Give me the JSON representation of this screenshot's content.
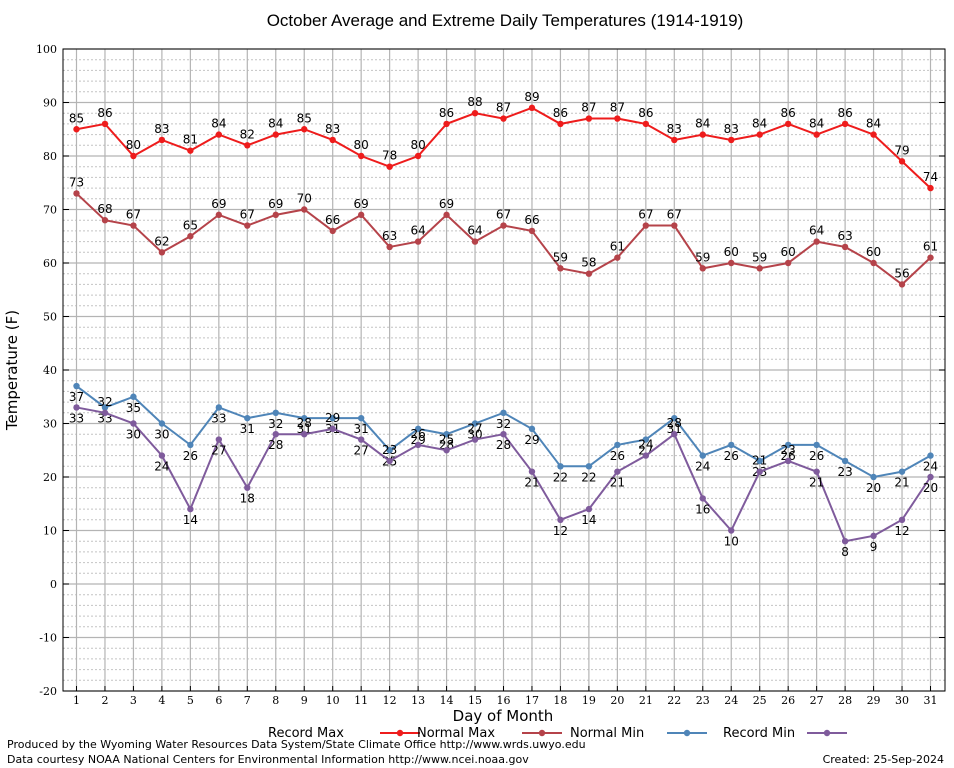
{
  "chart_data": {
    "type": "line",
    "title": "October Average and Extreme Daily Temperatures (1914-1919)",
    "xlabel": "Day of Month",
    "ylabel": "Temperature (F)",
    "ylim": [
      -20,
      100
    ],
    "yticks": [
      -20,
      -10,
      0,
      10,
      20,
      30,
      40,
      50,
      60,
      70,
      80,
      90,
      100
    ],
    "x": [
      1,
      2,
      3,
      4,
      5,
      6,
      7,
      8,
      9,
      10,
      11,
      12,
      13,
      14,
      15,
      16,
      17,
      18,
      19,
      20,
      21,
      22,
      23,
      24,
      25,
      26,
      27,
      28,
      29,
      30,
      31
    ],
    "grid": true,
    "legend_placement": "bottom",
    "series": [
      {
        "name": "Record Max",
        "color": "#ee1c1c",
        "values": [
          85,
          86,
          80,
          83,
          81,
          84,
          82,
          84,
          85,
          83,
          80,
          78,
          80,
          86,
          88,
          87,
          89,
          86,
          87,
          87,
          86,
          83,
          84,
          83,
          84,
          86,
          84,
          86,
          84,
          79,
          74
        ]
      },
      {
        "name": "Normal Max",
        "color": "#b5434a",
        "values": [
          73,
          68,
          67,
          62,
          65,
          69,
          67,
          69,
          70,
          66,
          69,
          63,
          64,
          69,
          64,
          67,
          66,
          59,
          58,
          61,
          67,
          67,
          59,
          60,
          59,
          60,
          64,
          63,
          60,
          56,
          61
        ]
      },
      {
        "name": "Normal Min",
        "color": "#4f85b8",
        "values": [
          37,
          33,
          35,
          30,
          26,
          33,
          31,
          32,
          31,
          31,
          31,
          25,
          29,
          28,
          30,
          32,
          29,
          22,
          22,
          26,
          27,
          31,
          24,
          26,
          23,
          26,
          26,
          23,
          20,
          21,
          24
        ]
      },
      {
        "name": "Record Min",
        "color": "#7f5b9c",
        "values": [
          33,
          32,
          30,
          24,
          14,
          27,
          18,
          28,
          28,
          29,
          27,
          23,
          26,
          25,
          27,
          28,
          21,
          12,
          14,
          21,
          24,
          28,
          16,
          10,
          21,
          23,
          21,
          8,
          9,
          12,
          20
        ]
      }
    ]
  },
  "footer": {
    "produced_by": "Produced by the Wyoming Water Resources Data System/State Climate Office http://www.wrds.uwyo.edu",
    "courtesy": "Data courtesy NOAA National Centers for Environmental Information http://www.ncei.noaa.gov",
    "created": "Created:  25-Sep-2024"
  }
}
